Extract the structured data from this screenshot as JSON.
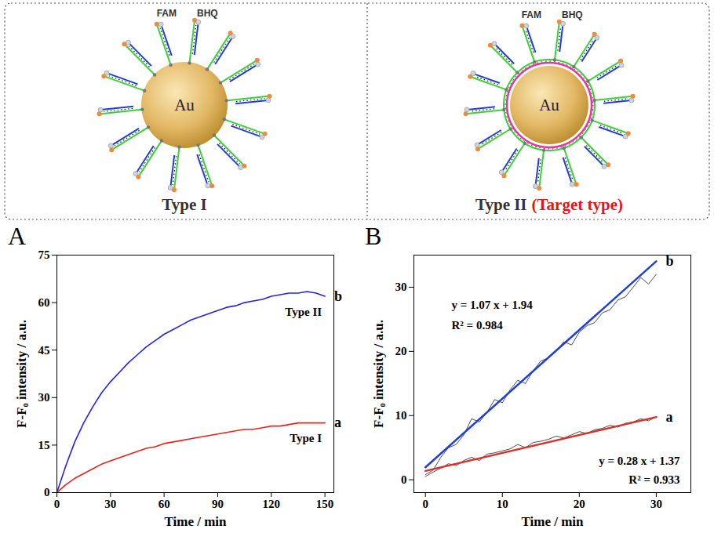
{
  "diagram": {
    "panels": [
      {
        "core": "Au",
        "strand_labels": [
          "FAM",
          "BHQ"
        ],
        "caption": "Type I"
      },
      {
        "core": "Au",
        "strand_labels": [
          "FAM",
          "BHQ"
        ],
        "caption": "Type II",
        "caption_note": "(Target type)"
      }
    ]
  },
  "chart_data": [
    {
      "type": "line",
      "panel": "A",
      "xlabel": "Time / min",
      "ylabel": "F-F₀ intensity / a.u.",
      "xlim": [
        0,
        155
      ],
      "ylim": [
        0,
        75
      ],
      "xticks": [
        0,
        30,
        60,
        90,
        120,
        150
      ],
      "yticks": [
        0,
        15,
        30,
        45,
        60,
        75
      ],
      "x": [
        0,
        5,
        10,
        15,
        20,
        25,
        30,
        35,
        40,
        45,
        50,
        55,
        60,
        65,
        70,
        75,
        80,
        85,
        90,
        95,
        100,
        105,
        110,
        115,
        120,
        125,
        130,
        135,
        140,
        145,
        150
      ],
      "series": [
        {
          "name": "b",
          "color": "#2424e0",
          "values": [
            0,
            8.5,
            16,
            22,
            27,
            31.5,
            35,
            38,
            41,
            43.5,
            46,
            48,
            50,
            51.5,
            53,
            54.5,
            55.5,
            56.5,
            57.5,
            58.5,
            59,
            60,
            60.5,
            61,
            62,
            62.5,
            63,
            63,
            63.5,
            63,
            62
          ]
        },
        {
          "name": "a",
          "color": "#e8231e",
          "values": [
            0,
            2.5,
            4.5,
            6,
            7.5,
            9,
            10,
            11,
            12,
            13,
            14,
            14.5,
            15.5,
            16,
            16.5,
            17,
            17.5,
            18,
            18.5,
            19,
            19.5,
            20,
            20,
            20.5,
            21,
            21,
            21.5,
            22,
            22,
            22,
            22
          ]
        }
      ],
      "annotations": [
        {
          "text": "Type II",
          "series": "b"
        },
        {
          "text": "Type I",
          "series": "a"
        }
      ]
    },
    {
      "type": "line",
      "panel": "B",
      "xlabel": "Time / min",
      "ylabel": "F-F₀ intensity / a.u.",
      "xlim": [
        -1.5,
        34.5
      ],
      "ylim": [
        -2,
        35
      ],
      "xticks": [
        0,
        10,
        20,
        30
      ],
      "yticks": [
        0,
        10,
        20,
        30
      ],
      "series": [
        {
          "color": "#4d4d4d",
          "x": [
            0,
            1,
            2,
            3,
            4,
            5,
            6,
            7,
            8,
            9,
            10,
            11,
            12,
            13,
            14,
            15,
            16,
            17,
            18,
            19,
            20,
            21,
            22,
            23,
            24,
            25,
            26,
            27,
            28,
            29,
            30
          ],
          "values": [
            0.8,
            1.5,
            3.5,
            5,
            5.5,
            7,
            9.5,
            9,
            10.5,
            12.5,
            12,
            14,
            15.5,
            15,
            17,
            18.5,
            19,
            20,
            21.5,
            21,
            23,
            24,
            24.5,
            26,
            26.5,
            28,
            28.5,
            30,
            31.5,
            30.5,
            32
          ]
        },
        {
          "name": "b",
          "color": "#1f3fdc",
          "x": [
            0,
            30
          ],
          "values": [
            1.94,
            34.04
          ]
        },
        {
          "color": "#4d4d4d",
          "x": [
            0,
            1,
            2,
            3,
            4,
            5,
            6,
            7,
            8,
            9,
            10,
            11,
            12,
            13,
            14,
            15,
            16,
            17,
            18,
            19,
            20,
            21,
            22,
            23,
            24,
            25,
            26,
            27,
            28,
            29,
            30
          ],
          "values": [
            0.5,
            1.2,
            1.8,
            2.5,
            2.2,
            3,
            3.5,
            3,
            4,
            4.2,
            4.5,
            4.8,
            5.5,
            5,
            5.8,
            6,
            6.3,
            6.8,
            6.5,
            7,
            7.5,
            7.2,
            7.8,
            8,
            8.5,
            8.2,
            8.8,
            9,
            9.5,
            9.2,
            9.8
          ]
        },
        {
          "name": "a",
          "color": "#d8322a",
          "x": [
            0,
            30
          ],
          "values": [
            1.37,
            9.77
          ]
        }
      ],
      "annotations": [
        {
          "text": "y = 1.07 x + 1.94",
          "series": "b"
        },
        {
          "text": "R² = 0.984",
          "series": "b"
        },
        {
          "text": "y = 0.28 x + 1.37",
          "series": "a"
        },
        {
          "text": "R² = 0.933",
          "series": "a"
        }
      ]
    }
  ]
}
